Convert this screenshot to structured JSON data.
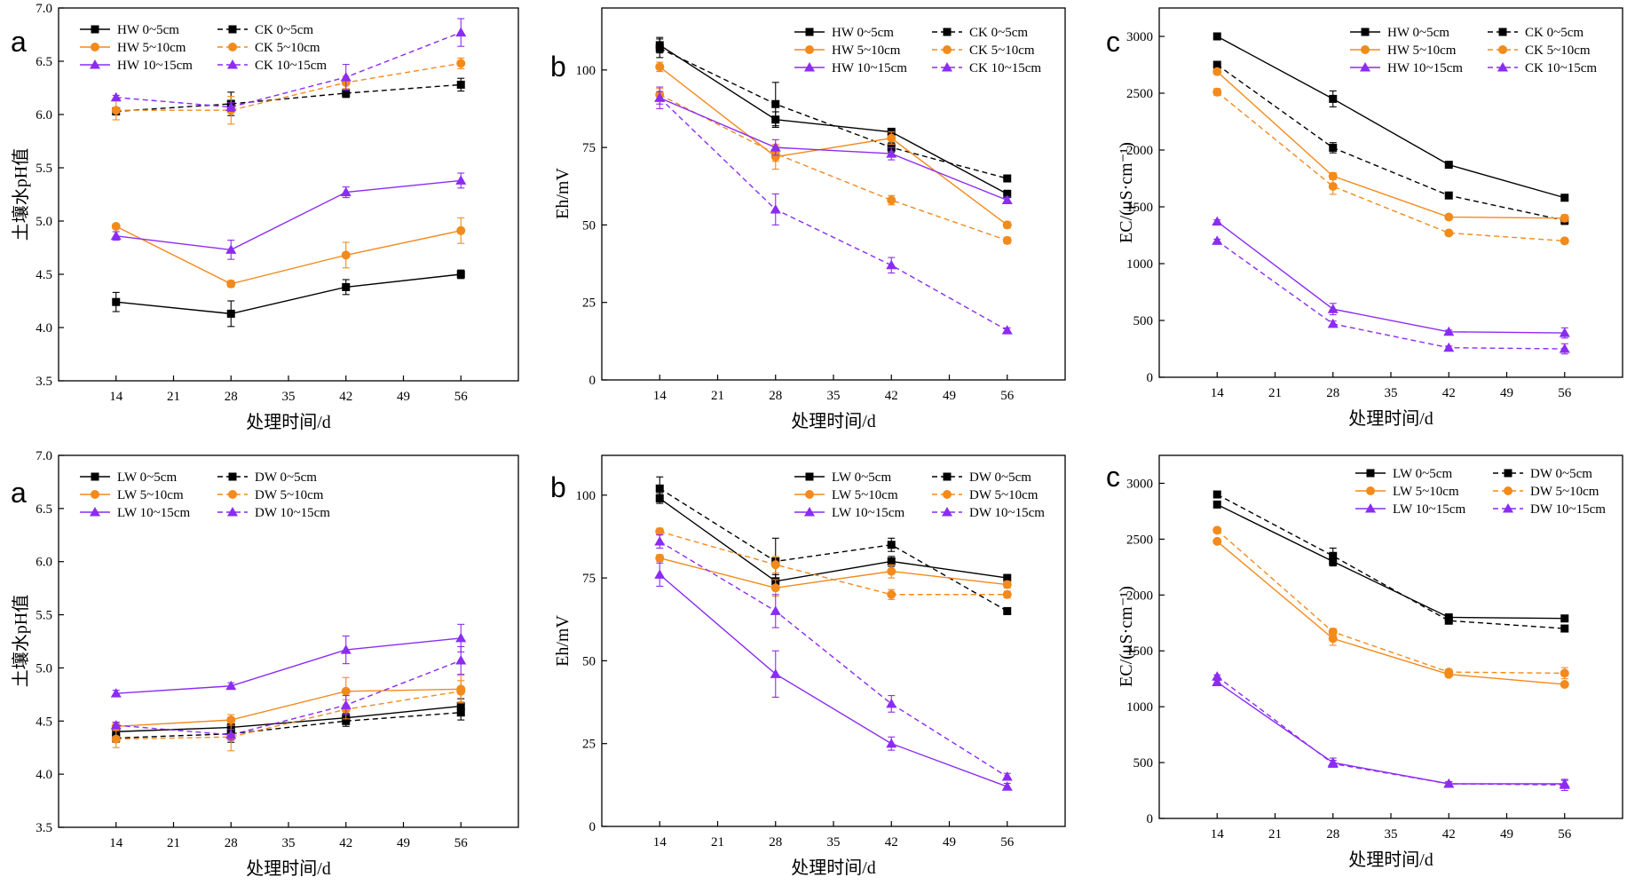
{
  "colors": {
    "black": "#000000",
    "orange": "#f28a1c",
    "purple": "#8b2cf3"
  },
  "chart_data": [
    {
      "type": "line",
      "panel_letter": "a",
      "xlabel": "处理时间/d",
      "ylabel": "土壤水pH值",
      "xlim": [
        7,
        63
      ],
      "ylim": [
        3.5,
        7.0
      ],
      "xticks": [
        "14",
        "21",
        "28",
        "35",
        "42",
        "49",
        "56"
      ],
      "yticks": [
        "3.5",
        "4.0",
        "4.5",
        "5.0",
        "5.5",
        "6.0",
        "6.5",
        "7.0"
      ],
      "x": [
        14,
        28,
        42,
        56
      ],
      "series": [
        {
          "name": "HW 0~5cm",
          "color": "black",
          "marker": "square",
          "dash": false,
          "values": [
            4.24,
            4.13,
            4.38,
            4.5
          ],
          "err": [
            0.09,
            0.12,
            0.07,
            0.04
          ]
        },
        {
          "name": "CK 0~5cm",
          "color": "black",
          "marker": "square",
          "dash": true,
          "values": [
            6.03,
            6.1,
            6.2,
            6.28
          ],
          "err": [
            0.03,
            0.11,
            0.04,
            0.06
          ]
        },
        {
          "name": "HW 5~10cm",
          "color": "orange",
          "marker": "circle",
          "dash": false,
          "values": [
            4.95,
            4.41,
            4.68,
            4.91
          ],
          "err": [
            0.02,
            0.03,
            0.12,
            0.12
          ]
        },
        {
          "name": "CK 5~10cm",
          "color": "orange",
          "marker": "circle",
          "dash": true,
          "values": [
            6.04,
            6.04,
            6.3,
            6.48
          ],
          "err": [
            0.09,
            0.13,
            0.06,
            0.05
          ]
        },
        {
          "name": "HW 10~15cm",
          "color": "purple",
          "marker": "triangle",
          "dash": false,
          "values": [
            4.86,
            4.73,
            5.27,
            5.38
          ],
          "err": [
            0.04,
            0.09,
            0.05,
            0.07
          ]
        },
        {
          "name": "CK 10~15cm",
          "color": "purple",
          "marker": "triangle",
          "dash": true,
          "values": [
            6.16,
            6.07,
            6.35,
            6.77
          ],
          "err": [
            0.02,
            0.04,
            0.12,
            0.13
          ]
        }
      ]
    },
    {
      "type": "line",
      "panel_letter": "b",
      "xlabel": "处理时间/d",
      "ylabel": "Eh/mV",
      "xlim": [
        7,
        63
      ],
      "ylim": [
        0,
        120
      ],
      "xticks": [
        "14",
        "21",
        "28",
        "35",
        "42",
        "49",
        "56"
      ],
      "yticks": [
        "0",
        "25",
        "50",
        "75",
        "100"
      ],
      "x": [
        14,
        28,
        42,
        56
      ],
      "series": [
        {
          "name": "HW 0~5cm",
          "color": "black",
          "marker": "square",
          "dash": false,
          "values": [
            108,
            84,
            80,
            60
          ],
          "err": [
            2.5,
            2.5,
            1.2,
            1.2
          ]
        },
        {
          "name": "CK 0~5cm",
          "color": "black",
          "marker": "square",
          "dash": true,
          "values": [
            107,
            89,
            75,
            65
          ],
          "err": [
            3.0,
            7.0,
            1.5,
            1.0
          ]
        },
        {
          "name": "HW 5~10cm",
          "color": "orange",
          "marker": "circle",
          "dash": false,
          "values": [
            101,
            72,
            78,
            50
          ],
          "err": [
            1.5,
            4.0,
            2.0,
            1.0
          ]
        },
        {
          "name": "CK 5~10cm",
          "color": "orange",
          "marker": "circle",
          "dash": true,
          "values": [
            92,
            73,
            58,
            45
          ],
          "err": [
            2.0,
            2.5,
            1.5,
            1.0
          ]
        },
        {
          "name": "HW 10~15cm",
          "color": "purple",
          "marker": "triangle",
          "dash": false,
          "values": [
            91,
            75,
            73,
            58
          ],
          "err": [
            2.0,
            2.5,
            2.0,
            1.0
          ]
        },
        {
          "name": "CK 10~15cm",
          "color": "purple",
          "marker": "triangle",
          "dash": true,
          "values": [
            91,
            55,
            37,
            16
          ],
          "err": [
            3.5,
            5.0,
            2.5,
            0.8
          ]
        }
      ]
    },
    {
      "type": "line",
      "panel_letter": "c",
      "xlabel": "处理时间/d",
      "ylabel": "EC/(μS·cm⁻¹)",
      "xlim": [
        7,
        63
      ],
      "ylim": [
        0,
        3250
      ],
      "xticks": [
        "14",
        "21",
        "28",
        "35",
        "42",
        "49",
        "56"
      ],
      "yticks": [
        "0",
        "500",
        "1000",
        "1500",
        "2000",
        "2500",
        "3000"
      ],
      "x": [
        14,
        28,
        42,
        56
      ],
      "series": [
        {
          "name": "HW 0~5cm",
          "color": "black",
          "marker": "square",
          "dash": false,
          "values": [
            3000,
            2450,
            1870,
            1580
          ],
          "err": [
            25,
            70,
            20,
            20
          ]
        },
        {
          "name": "CK 0~5cm",
          "color": "black",
          "marker": "square",
          "dash": true,
          "values": [
            2750,
            2020,
            1600,
            1380
          ],
          "err": [
            20,
            45,
            20,
            35
          ]
        },
        {
          "name": "HW 5~10cm",
          "color": "orange",
          "marker": "circle",
          "dash": false,
          "values": [
            2690,
            1770,
            1410,
            1400
          ],
          "err": [
            25,
            30,
            20,
            30
          ]
        },
        {
          "name": "CK 5~10cm",
          "color": "orange",
          "marker": "circle",
          "dash": true,
          "values": [
            2510,
            1680,
            1270,
            1200
          ],
          "err": [
            30,
            70,
            20,
            20
          ]
        },
        {
          "name": "HW 10~15cm",
          "color": "purple",
          "marker": "triangle",
          "dash": false,
          "values": [
            1370,
            600,
            400,
            390
          ],
          "err": [
            15,
            50,
            15,
            45
          ]
        },
        {
          "name": "CK 10~15cm",
          "color": "purple",
          "marker": "triangle",
          "dash": true,
          "values": [
            1200,
            470,
            260,
            250
          ],
          "err": [
            15,
            25,
            15,
            45
          ]
        }
      ]
    },
    {
      "type": "line",
      "panel_letter": "a",
      "xlabel": "处理时间/d",
      "ylabel": "土壤水pH值",
      "xlim": [
        7,
        63
      ],
      "ylim": [
        3.5,
        7.0
      ],
      "xticks": [
        "14",
        "21",
        "28",
        "35",
        "42",
        "49",
        "56"
      ],
      "yticks": [
        "3.5",
        "4.0",
        "4.5",
        "5.0",
        "5.5",
        "6.0",
        "6.5",
        "7.0"
      ],
      "x": [
        14,
        28,
        42,
        56
      ],
      "series": [
        {
          "name": "LW 0~5cm",
          "color": "black",
          "marker": "square",
          "dash": false,
          "values": [
            4.4,
            4.44,
            4.53,
            4.64
          ],
          "err": [
            0.04,
            0.05,
            0.04,
            0.07
          ]
        },
        {
          "name": "DW 0~5cm",
          "color": "black",
          "marker": "square",
          "dash": true,
          "values": [
            4.34,
            4.38,
            4.5,
            4.58
          ],
          "err": [
            0.04,
            0.08,
            0.05,
            0.07
          ]
        },
        {
          "name": "LW 5~10cm",
          "color": "orange",
          "marker": "circle",
          "dash": false,
          "values": [
            4.45,
            4.51,
            4.78,
            4.8
          ],
          "err": [
            0.03,
            0.05,
            0.13,
            0.13
          ]
        },
        {
          "name": "DW 5~10cm",
          "color": "orange",
          "marker": "circle",
          "dash": true,
          "values": [
            4.33,
            4.35,
            4.61,
            4.78
          ],
          "err": [
            0.08,
            0.13,
            0.09,
            0.1
          ]
        },
        {
          "name": "LW 10~15cm",
          "color": "purple",
          "marker": "triangle",
          "dash": false,
          "values": [
            4.76,
            4.83,
            5.17,
            5.28
          ],
          "err": [
            0.03,
            0.03,
            0.13,
            0.13
          ]
        },
        {
          "name": "DW 10~15cm",
          "color": "purple",
          "marker": "triangle",
          "dash": true,
          "values": [
            4.46,
            4.37,
            4.65,
            5.07
          ],
          "err": [
            0.03,
            0.05,
            0.09,
            0.13
          ]
        }
      ]
    },
    {
      "type": "line",
      "panel_letter": "b",
      "xlabel": "处理时间/d",
      "ylabel": "Eh/mV",
      "xlim": [
        7,
        63
      ],
      "ylim": [
        0,
        112
      ],
      "xticks": [
        "14",
        "21",
        "28",
        "35",
        "42",
        "49",
        "56"
      ],
      "yticks": [
        "0",
        "25",
        "50",
        "75",
        "100"
      ],
      "x": [
        14,
        28,
        42,
        56
      ],
      "series": [
        {
          "name": "LW 0~5cm",
          "color": "black",
          "marker": "square",
          "dash": false,
          "values": [
            99,
            74,
            80,
            75
          ],
          "err": [
            1.5,
            2.0,
            1.5,
            1.0
          ]
        },
        {
          "name": "DW 0~5cm",
          "color": "black",
          "marker": "square",
          "dash": true,
          "values": [
            102,
            80,
            85,
            65
          ],
          "err": [
            3.5,
            7.0,
            2.0,
            1.0
          ]
        },
        {
          "name": "LW 5~10cm",
          "color": "orange",
          "marker": "circle",
          "dash": false,
          "values": [
            81,
            72,
            77,
            73
          ],
          "err": [
            1.0,
            2.5,
            2.0,
            1.0
          ]
        },
        {
          "name": "DW 5~10cm",
          "color": "orange",
          "marker": "circle",
          "dash": true,
          "values": [
            89,
            79,
            70,
            70
          ],
          "err": [
            1.0,
            2.5,
            1.5,
            1.0
          ]
        },
        {
          "name": "LW 10~15cm",
          "color": "purple",
          "marker": "triangle",
          "dash": false,
          "values": [
            76,
            46,
            25,
            12
          ],
          "err": [
            3.5,
            7.0,
            2.0,
            1.0
          ]
        },
        {
          "name": "DW 10~15cm",
          "color": "purple",
          "marker": "triangle",
          "dash": true,
          "values": [
            86,
            65,
            37,
            15
          ],
          "err": [
            2.0,
            5.0,
            2.5,
            1.0
          ]
        }
      ]
    },
    {
      "type": "line",
      "panel_letter": "c",
      "xlabel": "处理时间/d",
      "ylabel": "EC/(μS·cm⁻¹)",
      "xlim": [
        7,
        63
      ],
      "ylim": [
        0,
        3250
      ],
      "xticks": [
        "14",
        "21",
        "28",
        "35",
        "42",
        "49",
        "56"
      ],
      "yticks": [
        "0",
        "500",
        "1000",
        "1500",
        "2000",
        "2500",
        "3000"
      ],
      "x": [
        14,
        28,
        42,
        56
      ],
      "series": [
        {
          "name": "LW 0~5cm",
          "color": "black",
          "marker": "square",
          "dash": false,
          "values": [
            2810,
            2300,
            1800,
            1790
          ],
          "err": [
            20,
            40,
            20,
            20
          ]
        },
        {
          "name": "DW 0~5cm",
          "color": "black",
          "marker": "square",
          "dash": true,
          "values": [
            2900,
            2350,
            1770,
            1700
          ],
          "err": [
            20,
            70,
            25,
            20
          ]
        },
        {
          "name": "LW 5~10cm",
          "color": "orange",
          "marker": "circle",
          "dash": false,
          "values": [
            2480,
            1610,
            1290,
            1200
          ],
          "err": [
            20,
            60,
            20,
            20
          ]
        },
        {
          "name": "DW 5~10cm",
          "color": "orange",
          "marker": "circle",
          "dash": true,
          "values": [
            2580,
            1670,
            1310,
            1300
          ],
          "err": [
            20,
            30,
            20,
            50
          ]
        },
        {
          "name": "LW 10~15cm",
          "color": "purple",
          "marker": "triangle",
          "dash": false,
          "values": [
            1220,
            500,
            310,
            310
          ],
          "err": [
            15,
            40,
            20,
            30
          ]
        },
        {
          "name": "DW 10~15cm",
          "color": "purple",
          "marker": "triangle",
          "dash": true,
          "values": [
            1270,
            490,
            310,
            300
          ],
          "err": [
            15,
            30,
            15,
            50
          ]
        }
      ]
    }
  ]
}
